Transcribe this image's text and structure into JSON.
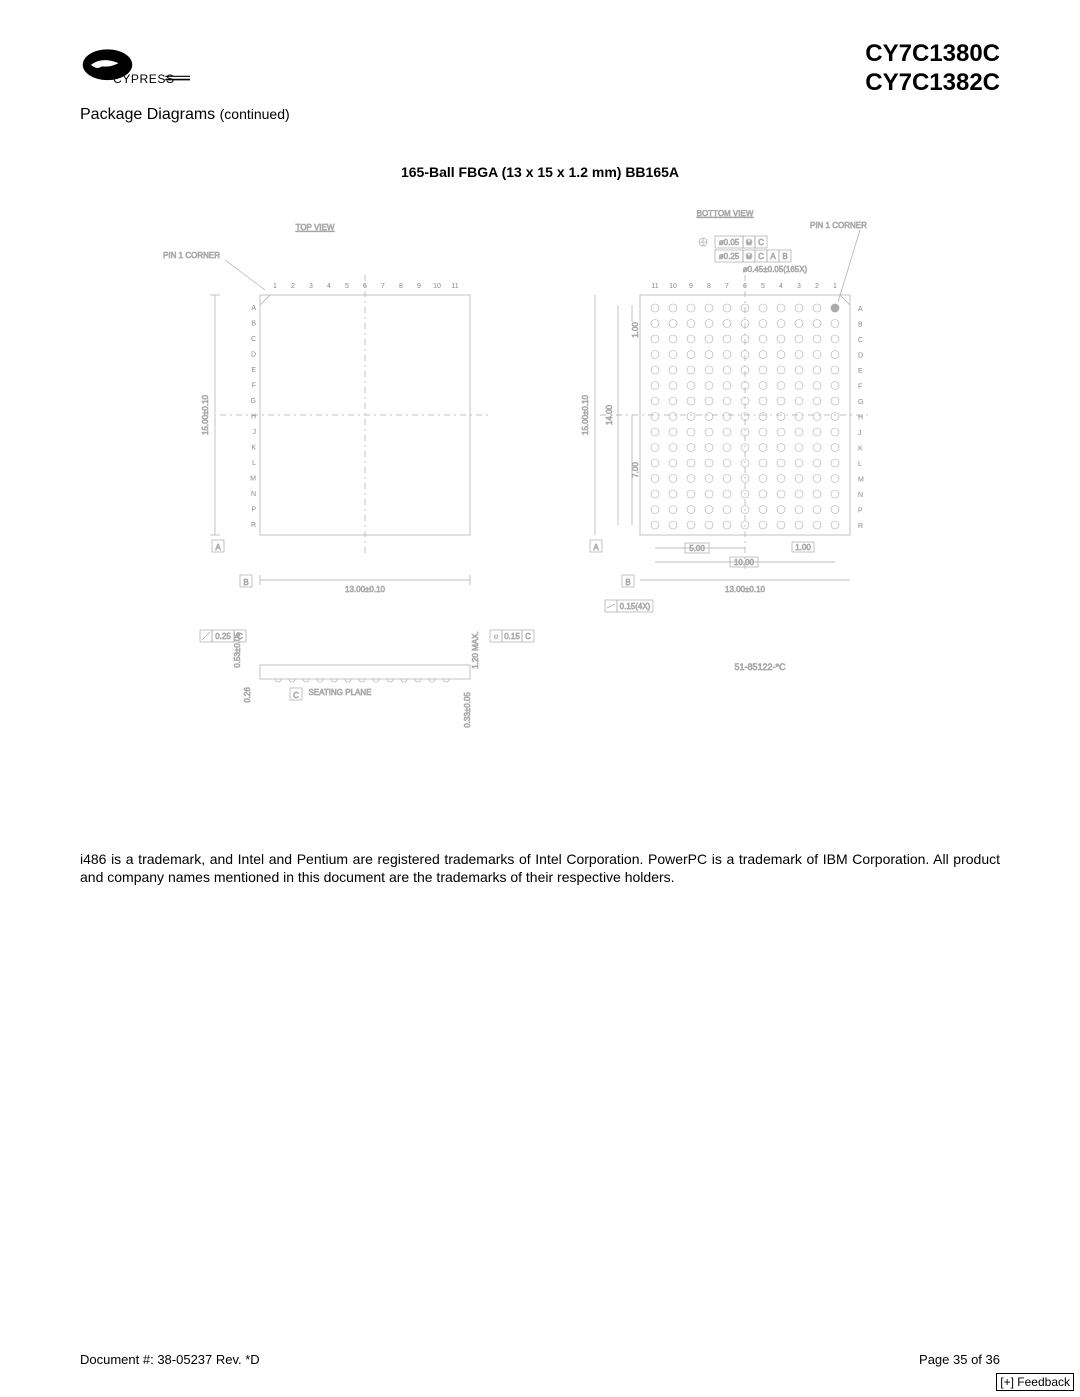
{
  "header": {
    "part1": "CY7C1380C",
    "part2": "CY7C1382C",
    "logo_text": "CYPRESS"
  },
  "section": {
    "title": "Package Diagrams",
    "continued": "(continued)"
  },
  "diagram": {
    "title": "165-Ball FBGA (13 x 15 x 1.2 mm) BB165A",
    "top_view_label": "TOP VIEW",
    "bottom_view_label": "BOTTOM VIEW",
    "pin1_corner": "PIN 1 CORNER",
    "row_labels": [
      "A",
      "B",
      "C",
      "D",
      "E",
      "F",
      "G",
      "H",
      "J",
      "K",
      "L",
      "M",
      "N",
      "P",
      "R"
    ],
    "col_labels": [
      "1",
      "2",
      "3",
      "4",
      "5",
      "6",
      "7",
      "8",
      "9",
      "10",
      "11"
    ],
    "col_labels_rev": [
      "11",
      "10",
      "9",
      "8",
      "7",
      "6",
      "5",
      "4",
      "3",
      "2",
      "1"
    ],
    "dims": {
      "height": "15.00±0.10",
      "width": "13.00±0.10",
      "inner_h": "14.00",
      "inner_h2": "7.00",
      "inner_v": "1.00",
      "pitch_x": "5.00",
      "pitch_x2": "10.00",
      "ball_pitch": "1.00",
      "tol1": "ø0.05",
      "tol2": "ø0.25",
      "tol3": "ø0.45±0.05(165X)",
      "flat": "0.15(4X)",
      "side_h": "1.20 MAX.",
      "side_top": "0.53±0.05",
      "side_bot": "0.26",
      "standoff": "0.33±0.05",
      "seating": "SEATING PLANE",
      "spec": "51-85122-*C",
      "datum_a": "A",
      "datum_b": "B",
      "datum_c": "C",
      "gd_c": "C",
      "gd_m": "M",
      "gd_ab": "A B",
      "flatness_sym": "0.25",
      "flatness2": "0.15"
    },
    "colors": {
      "line": "#999999",
      "text": "#888888",
      "dark": "#000000"
    }
  },
  "trademark": "i486 is a trademark, and Intel and Pentium are registered trademarks of Intel Corporation. PowerPC is a trademark of IBM Corporation. All product and company names mentioned in this document are the trademarks of their respective holders.",
  "footer": {
    "doc": "Document #: 38-05237 Rev. *D",
    "page": "Page 35 of 36",
    "feedback": "[+] Feedback"
  }
}
